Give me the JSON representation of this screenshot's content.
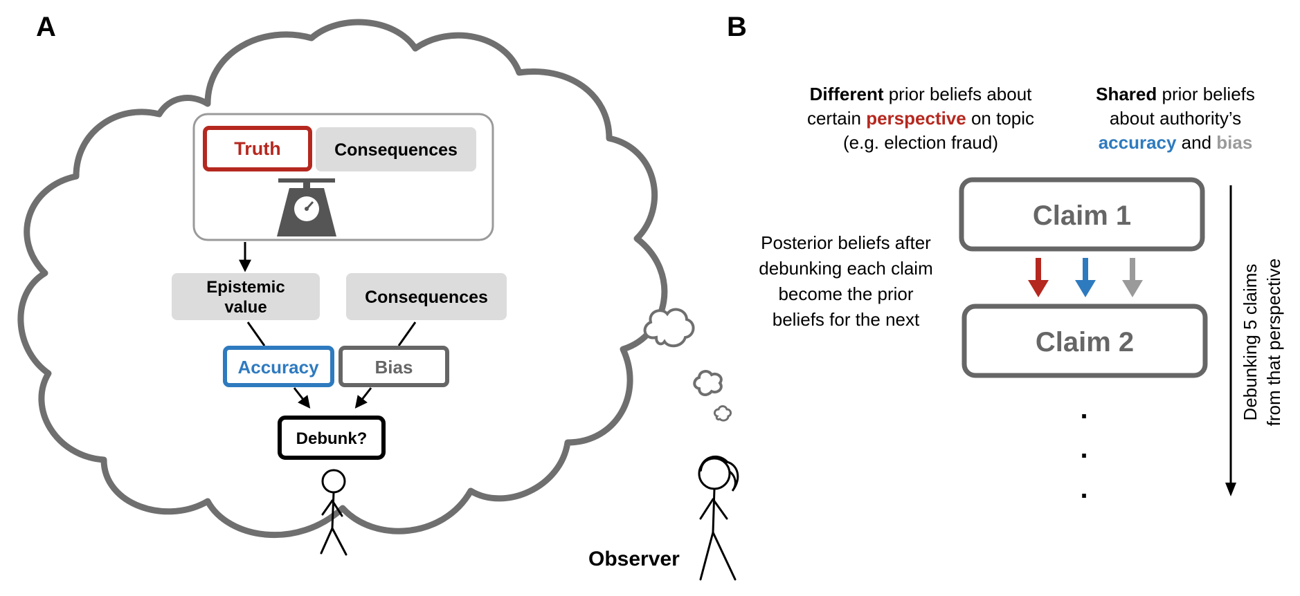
{
  "panel_a": {
    "label": "A",
    "truth": "Truth",
    "consequences_top": "Consequences",
    "epistemic_line1": "Epistemic",
    "epistemic_line2": "value",
    "consequences_mid": "Consequences",
    "accuracy": "Accuracy",
    "bias": "Bias",
    "debunk": "Debunk?",
    "observer": "Observer"
  },
  "panel_b": {
    "label": "B",
    "different_lead": "Different",
    "different_rest1": " prior beliefs about",
    "different_line2_pre": "certain ",
    "different_perspective": "perspective",
    "different_line2_post": " on topic",
    "different_line3": "(e.g. election fraud)",
    "shared_lead": "Shared",
    "shared_rest1": " prior beliefs",
    "shared_line2": "about authority’s",
    "shared_accuracy": "accuracy",
    "shared_and": " and ",
    "shared_bias": "bias",
    "posterior_lines": [
      "Posterior beliefs after",
      "debunking each claim",
      "become the prior",
      "beliefs for the next"
    ],
    "claim1": "Claim 1",
    "claim2": "Claim 2",
    "dots": [
      ".",
      ".",
      "."
    ],
    "vertical_line1": "Debunking 5 claims",
    "vertical_line2": "from that perspective"
  },
  "colors": {
    "red": "#b5281f",
    "blue": "#2e7abf",
    "gray": "#9a9a9a",
    "dark_gray": "#666666",
    "box_fill": "#dcdcdc",
    "cloud_stroke": "#6f6f6f"
  }
}
